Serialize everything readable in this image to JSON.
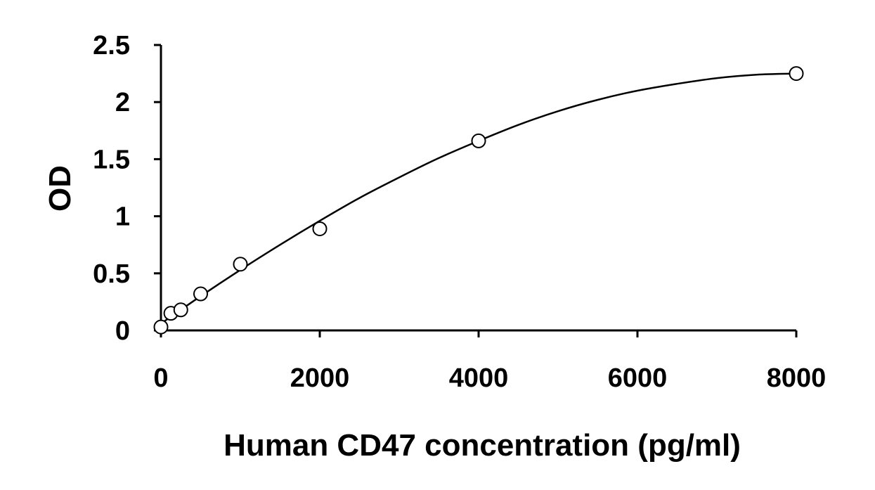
{
  "chart_data": {
    "type": "scatter",
    "title": "",
    "xlabel": "Human CD47 concentration (pg/ml)",
    "ylabel": "OD",
    "xlim": [
      0,
      8000
    ],
    "ylim": [
      0,
      2.5
    ],
    "x_ticks": [
      0,
      2000,
      4000,
      6000,
      8000
    ],
    "y_ticks": [
      0,
      0.5,
      1,
      1.5,
      2,
      2.5
    ],
    "x_tick_labels": [
      "0",
      "2000",
      "4000",
      "6000",
      "8000"
    ],
    "y_tick_labels": [
      "0",
      "0.5",
      "1",
      "1.5",
      "2",
      "2.5"
    ],
    "grid": false,
    "legend": "none",
    "series": [
      {
        "marker": "open-circle",
        "x": [
          0,
          125,
          250,
          500,
          1000,
          2000,
          4000,
          8000
        ],
        "y": [
          0.03,
          0.15,
          0.18,
          0.32,
          0.58,
          0.89,
          1.66,
          2.25
        ]
      }
    ],
    "fit_curve": {
      "x": [
        0,
        500,
        1000,
        1500,
        2000,
        2500,
        3000,
        3500,
        4000,
        4500,
        5000,
        5500,
        6000,
        6500,
        7000,
        7500,
        8000
      ],
      "y": [
        0.06,
        0.3,
        0.53,
        0.75,
        0.96,
        1.16,
        1.34,
        1.51,
        1.66,
        1.8,
        1.92,
        2.02,
        2.1,
        2.16,
        2.21,
        2.24,
        2.25
      ]
    },
    "colors": {
      "axis": "#000000",
      "marker_stroke": "#000000",
      "marker_fill": "#ffffff",
      "curve": "#000000"
    }
  }
}
